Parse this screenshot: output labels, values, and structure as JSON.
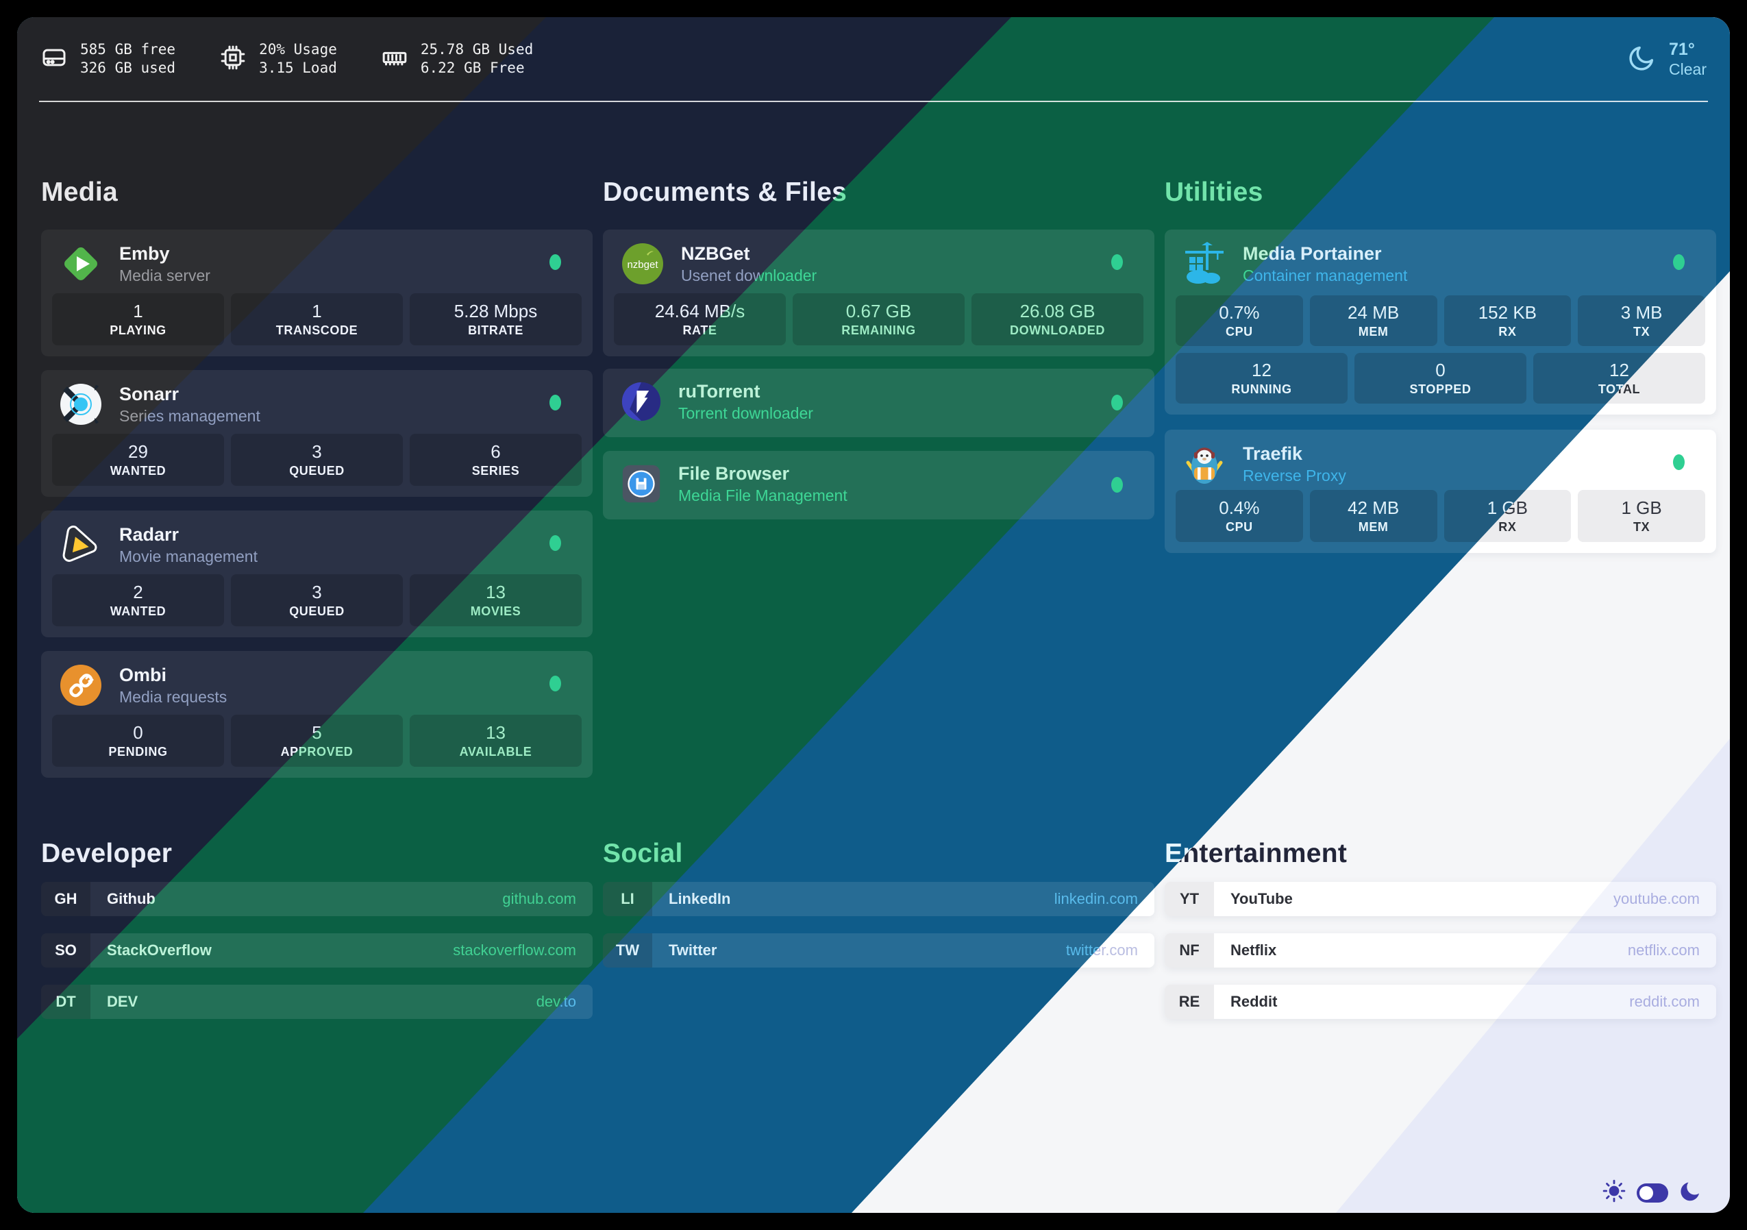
{
  "topbar": {
    "disk": {
      "icon": "hard-drive-icon",
      "line1": "585 GB free",
      "line2": "326 GB used"
    },
    "cpu": {
      "icon": "cpu-icon",
      "line1": "20% Usage",
      "line2": "3.15 Load"
    },
    "memory": {
      "icon": "ram-icon",
      "line1": "25.78 GB Used",
      "line2": "6.22 GB Free"
    },
    "weather": {
      "icon": "crescent-moon-icon",
      "temperature": "71°",
      "condition": "Clear"
    }
  },
  "groups": [
    {
      "title": "Media",
      "services": [
        {
          "name": "Emby",
          "subtitle": "Media server",
          "icon": "emby-icon",
          "status_color": "#2fcf92",
          "stats": [
            {
              "value": "1",
              "label": "PLAYING"
            },
            {
              "value": "1",
              "label": "TRANSCODE"
            },
            {
              "value": "5.28 Mbps",
              "label": "BITRATE"
            }
          ]
        },
        {
          "name": "Sonarr",
          "subtitle": "Series management",
          "icon": "sonarr-icon",
          "status_color": "#2fcf92",
          "stats": [
            {
              "value": "29",
              "label": "WANTED"
            },
            {
              "value": "3",
              "label": "QUEUED"
            },
            {
              "value": "6",
              "label": "SERIES"
            }
          ]
        },
        {
          "name": "Radarr",
          "subtitle": "Movie management",
          "icon": "radarr-icon",
          "status_color": "#2fcf92",
          "stats": [
            {
              "value": "2",
              "label": "WANTED"
            },
            {
              "value": "3",
              "label": "QUEUED"
            },
            {
              "value": "13",
              "label": "MOVIES"
            }
          ]
        },
        {
          "name": "Ombi",
          "subtitle": "Media requests",
          "icon": "ombi-icon",
          "status_color": "#2fcf92",
          "stats": [
            {
              "value": "0",
              "label": "PENDING"
            },
            {
              "value": "5",
              "label": "APPROVED"
            },
            {
              "value": "13",
              "label": "AVAILABLE"
            }
          ]
        }
      ]
    },
    {
      "title": "Documents & Files",
      "services": [
        {
          "name": "NZBGet",
          "subtitle": "Usenet downloader",
          "icon": "nzbget-icon",
          "status_color": "#2fcf92",
          "stats": [
            {
              "value": "24.64 MB/s",
              "label": "RATE"
            },
            {
              "value": "0.67 GB",
              "label": "REMAINING"
            },
            {
              "value": "26.08 GB",
              "label": "DOWNLOADED"
            }
          ]
        },
        {
          "name": "ruTorrent",
          "subtitle": "Torrent downloader",
          "icon": "rutorrent-icon",
          "status_color": "#2fcf92"
        },
        {
          "name": "File Browser",
          "subtitle": "Media File Management",
          "icon": "filebrowser-icon",
          "status_color": "#2fcf92"
        }
      ]
    },
    {
      "title": "Utilities",
      "services": [
        {
          "name": "Media Portainer",
          "subtitle": "Container management",
          "icon": "portainer-icon",
          "status_color": "#2fcf92",
          "stats": [
            {
              "value": "0.7%",
              "label": "CPU"
            },
            {
              "value": "24 MB",
              "label": "MEM"
            },
            {
              "value": "152 KB",
              "label": "RX"
            },
            {
              "value": "3 MB",
              "label": "TX"
            }
          ],
          "stats2": [
            {
              "value": "12",
              "label": "RUNNING"
            },
            {
              "value": "0",
              "label": "STOPPED"
            },
            {
              "value": "12",
              "label": "TOTAL"
            }
          ]
        },
        {
          "name": "Traefik",
          "subtitle": "Reverse Proxy",
          "icon": "traefik-icon",
          "status_color": "#2fcf92",
          "stats": [
            {
              "value": "0.4%",
              "label": "CPU"
            },
            {
              "value": "42 MB",
              "label": "MEM"
            },
            {
              "value": "1 GB",
              "label": "RX"
            },
            {
              "value": "1 GB",
              "label": "TX"
            }
          ]
        }
      ]
    }
  ],
  "bookmarks": [
    {
      "title": "Developer",
      "links": [
        {
          "abbr": "GH",
          "name": "Github",
          "url": "github.com"
        },
        {
          "abbr": "SO",
          "name": "StackOverflow",
          "url": "stackoverflow.com"
        },
        {
          "abbr": "DT",
          "name": "DEV",
          "url": "dev.to"
        }
      ]
    },
    {
      "title": "Social",
      "links": [
        {
          "abbr": "LI",
          "name": "LinkedIn",
          "url": "linkedin.com"
        },
        {
          "abbr": "TW",
          "name": "Twitter",
          "url": "twitter.com"
        }
      ]
    },
    {
      "title": "Entertainment",
      "links": [
        {
          "abbr": "YT",
          "name": "YouTube",
          "url": "youtube.com"
        },
        {
          "abbr": "NF",
          "name": "Netflix",
          "url": "netflix.com"
        },
        {
          "abbr": "RE",
          "name": "Reddit",
          "url": "reddit.com"
        }
      ]
    }
  ],
  "theme": {
    "bands": {
      "charcoal": "#232428",
      "navy": "#1a2238",
      "green": "#0b6044",
      "blue": "#0f5c8a",
      "white": "#f5f6f8",
      "lavender": "#e7eaf8"
    },
    "status_green": "#2fcf92",
    "toggle_accent": "#3d38a8"
  }
}
